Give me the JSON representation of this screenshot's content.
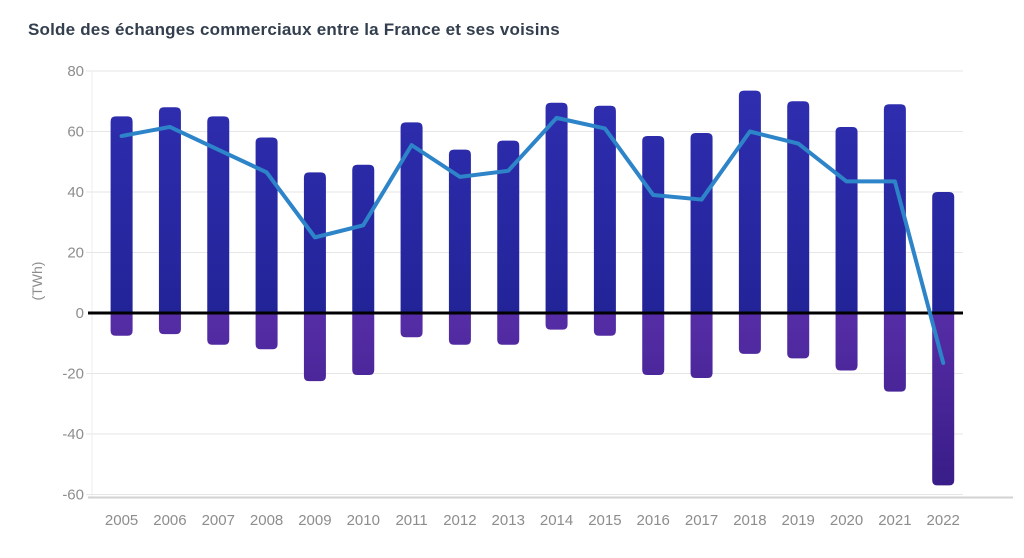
{
  "chart_data": {
    "type": "combo",
    "title": "Solde des échanges commerciaux entre la France et ses voisins",
    "ylabel": "(TWh)",
    "xlabel": "",
    "ylim": [
      -60,
      80
    ],
    "yticks": [
      80,
      60,
      40,
      20,
      0,
      -20,
      -40,
      -60
    ],
    "grid": true,
    "legend_position": "none",
    "categories": [
      "2005",
      "2006",
      "2007",
      "2008",
      "2009",
      "2010",
      "2011",
      "2012",
      "2013",
      "2014",
      "2015",
      "2016",
      "2017",
      "2018",
      "2019",
      "2020",
      "2021",
      "2022"
    ],
    "series": [
      {
        "name": "flux-positif-bars",
        "type": "bar",
        "values": [
          65,
          68,
          65,
          58,
          46.5,
          49,
          63,
          54,
          57,
          69.5,
          68.5,
          58.5,
          59.5,
          73.5,
          70,
          61.5,
          69,
          40
        ],
        "gradient_top": "#2f2fb2",
        "gradient_bottom": "#232398"
      },
      {
        "name": "flux-negatif-bars",
        "type": "bar",
        "values": [
          -7.5,
          -7,
          -10.5,
          -12,
          -22.5,
          -20.5,
          -8,
          -10.5,
          -10.5,
          -5.5,
          -7.5,
          -20.5,
          -21.5,
          -13.5,
          -15,
          -19,
          -26,
          -57
        ],
        "gradient_top": "#562da6",
        "gradient_bottom": "#371c86"
      },
      {
        "name": "solde-line",
        "type": "line",
        "values": [
          58.5,
          61.5,
          54,
          46.5,
          25,
          29,
          55.5,
          45,
          47,
          64.5,
          61,
          39,
          37.5,
          60,
          56,
          43.5,
          43.5,
          -16.5
        ],
        "color": "#2e84c8"
      }
    ],
    "colors": {
      "zero_line": "#000000",
      "gridline": "#e6e6e6",
      "axis_line": "#d2d2d2",
      "axis_text": "#8d8d8d",
      "title_text": "#333f4e"
    }
  }
}
